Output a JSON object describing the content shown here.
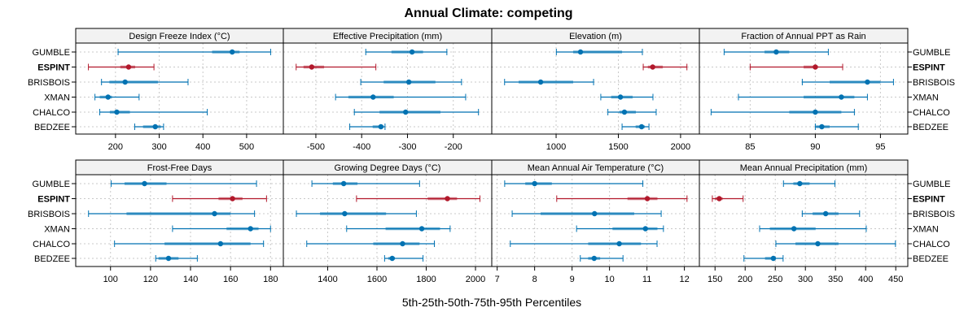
{
  "chart_data": {
    "type": "dotplot",
    "title": "Annual Climate: competing",
    "xlabel": "5th-25th-50th-75th-95th Percentiles",
    "sites": [
      "GUMBLE",
      "ESPINT",
      "BRISBOIS",
      "XMAN",
      "CHALCO",
      "BEDZEE"
    ],
    "highlight_site": "ESPINT",
    "colors": {
      "normal": "#0072B2",
      "highlight": "#B2182B",
      "strip": "#f2f2f2",
      "grid": "#c8c8c8"
    },
    "grid": true,
    "panels": [
      {
        "title": "Design Freeze Index (°C)",
        "xlim": [
          109,
          584
        ],
        "ticks": [
          200,
          300,
          400,
          500
        ],
        "values": [
          [
            206,
            421,
            467,
            484,
            555
          ],
          [
            138,
            211,
            230,
            245,
            288
          ],
          [
            168,
            186,
            222,
            297,
            366
          ],
          [
            153,
            164,
            183,
            192,
            254
          ],
          [
            164,
            187,
            203,
            233,
            410
          ],
          [
            244,
            263,
            291,
            304,
            310
          ]
        ]
      },
      {
        "title": "Effective Precipitation (mm)",
        "xlim": [
          -571,
          -116
        ],
        "ticks": [
          -500,
          -400,
          -300,
          -200
        ],
        "values": [
          [
            -391,
            -335,
            -290,
            -266,
            -214
          ],
          [
            -543,
            -527,
            -509,
            -482,
            -369
          ],
          [
            -402,
            -352,
            -297,
            -239,
            -182
          ],
          [
            -457,
            -429,
            -375,
            -330,
            -173
          ],
          [
            -416,
            -361,
            -304,
            -228,
            -145
          ],
          [
            -426,
            -376,
            -358,
            -352,
            -349
          ]
        ]
      },
      {
        "title": "Elevation (m)",
        "xlim": [
          483,
          2151
        ],
        "ticks": [
          1000,
          1500,
          2000
        ],
        "values": [
          [
            1002,
            1137,
            1196,
            1530,
            1693
          ],
          [
            1700,
            1737,
            1776,
            1857,
            2051
          ],
          [
            586,
            699,
            876,
            1137,
            1301
          ],
          [
            1359,
            1442,
            1517,
            1615,
            1778
          ],
          [
            1416,
            1508,
            1549,
            1641,
            1804
          ],
          [
            1530,
            1639,
            1687,
            1713,
            1746
          ]
        ]
      },
      {
        "title": "Fraction of Annual PPT as Rain",
        "xlim": [
          81.1,
          97.1
        ],
        "ticks": [
          85,
          90,
          95
        ],
        "values": [
          [
            83.0,
            86.1,
            87.0,
            88.0,
            91.0
          ],
          [
            85.0,
            89.1,
            90.0,
            90.2,
            92.1
          ],
          [
            89.0,
            91.1,
            94.0,
            95.0,
            96.0
          ],
          [
            84.1,
            89.1,
            92.0,
            93.0,
            94.0
          ],
          [
            82.0,
            88.0,
            90.0,
            92.0,
            93.0
          ],
          [
            90.0,
            90.05,
            90.5,
            91.1,
            93.3
          ]
        ]
      },
      {
        "title": "Frost-Free Days",
        "xlim": [
          82.6,
          186.4
        ],
        "ticks": [
          100,
          120,
          140,
          160,
          180
        ],
        "values": [
          [
            100.3,
            107,
            117,
            128,
            173
          ],
          [
            131,
            154,
            161,
            166,
            178
          ],
          [
            89,
            108,
            152,
            160,
            172
          ],
          [
            131,
            158,
            170,
            174,
            180
          ],
          [
            102,
            127,
            155,
            170,
            176.5
          ],
          [
            122.6,
            124,
            129,
            134,
            143.4
          ]
        ]
      },
      {
        "title": "Growing Degree Days (°C)",
        "xlim": [
          1220,
          2066
        ],
        "ticks": [
          1400,
          1600,
          1800,
          2000
        ],
        "values": [
          [
            1336,
            1421,
            1465,
            1521,
            1773
          ],
          [
            1517,
            1806,
            1886,
            1925,
            2018
          ],
          [
            1273,
            1369,
            1469,
            1637,
            1760
          ],
          [
            1477,
            1635,
            1782,
            1856,
            1897
          ],
          [
            1315,
            1585,
            1704,
            1773,
            1833
          ],
          [
            1631,
            1646,
            1662,
            1673,
            1787
          ]
        ]
      },
      {
        "title": "Mean Annual Air Temperature (°C)",
        "xlim": [
          6.855,
          12.4
        ],
        "ticks": [
          7,
          8,
          9,
          10,
          11,
          12
        ],
        "values": [
          [
            7.2,
            7.75,
            8.0,
            8.46,
            10.89
          ],
          [
            8.59,
            10.48,
            11.01,
            11.28,
            12.07
          ],
          [
            7.4,
            8.16,
            9.6,
            10.66,
            11.38
          ],
          [
            9.12,
            10.08,
            10.96,
            11.28,
            11.44
          ],
          [
            7.35,
            9.43,
            10.26,
            10.84,
            11.27
          ],
          [
            9.22,
            9.43,
            9.59,
            9.75,
            10.36
          ]
        ]
      },
      {
        "title": "Mean Annual Precipitation (mm)",
        "xlim": [
          124,
          470
        ],
        "ticks": [
          150,
          200,
          250,
          300,
          350,
          400,
          450
        ],
        "values": [
          [
            263.6,
            280,
            290.7,
            307,
            349
          ],
          [
            145.5,
            150,
            157,
            162.7,
            196.6
          ],
          [
            294.8,
            312,
            333.7,
            355,
            390
          ],
          [
            224,
            241,
            281,
            317,
            401
          ],
          [
            251,
            283.5,
            320.6,
            355,
            449.5
          ],
          [
            198,
            233,
            246.8,
            251,
            263
          ]
        ]
      }
    ]
  }
}
